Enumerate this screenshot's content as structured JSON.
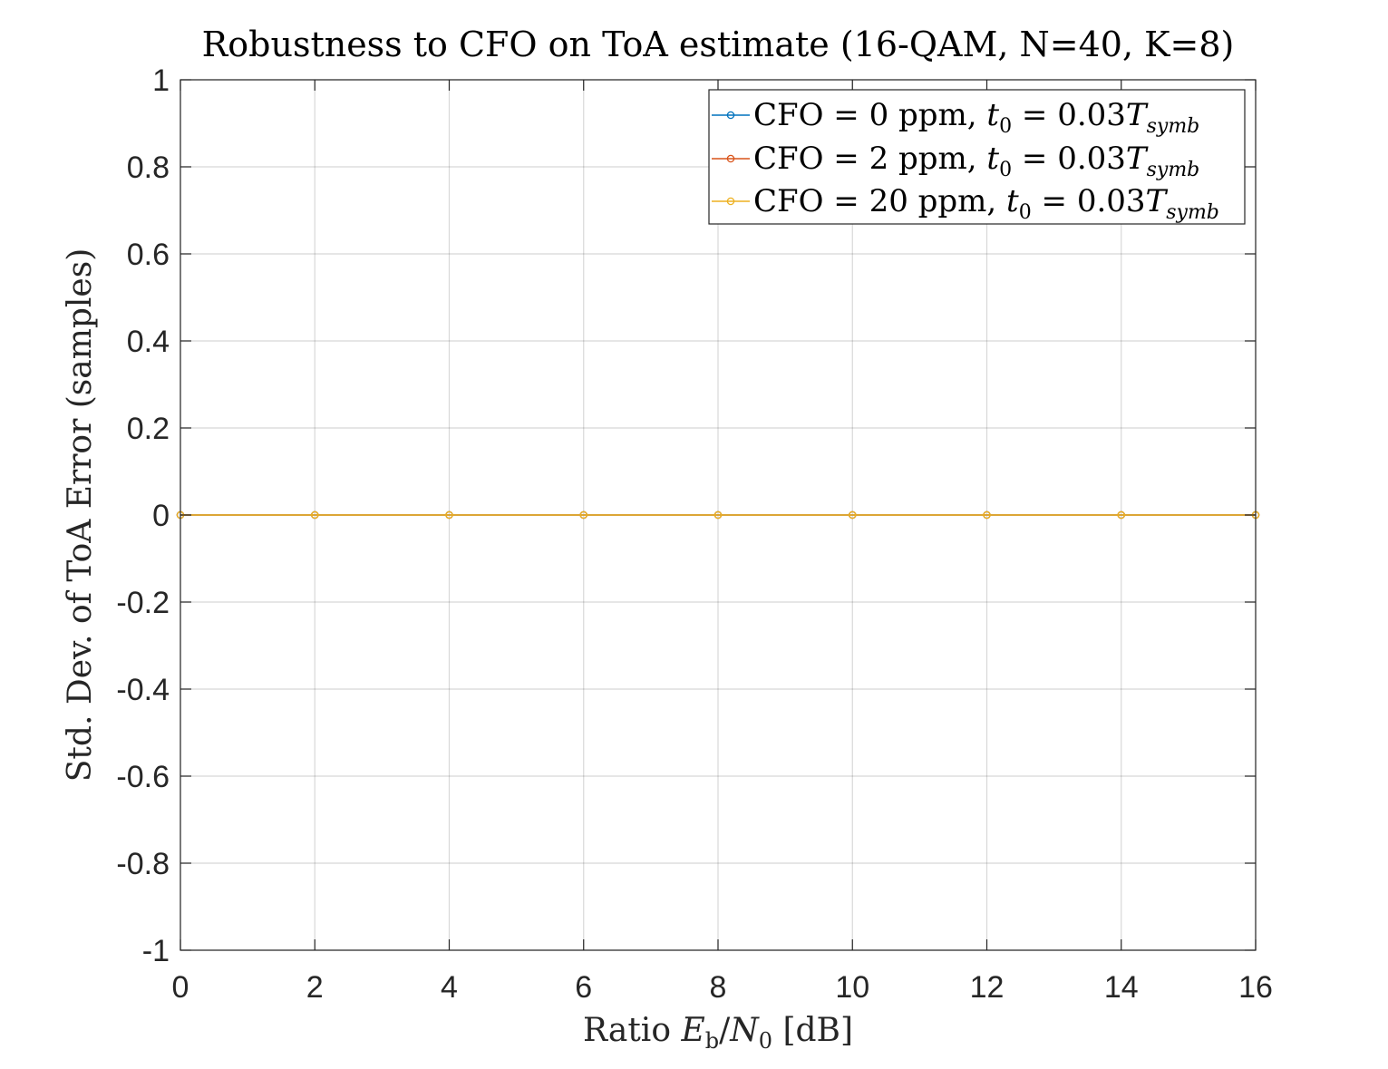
{
  "chart_data": {
    "type": "line",
    "title": "Robustness to CFO on ToA estimate (16-QAM, N=40, K=8)",
    "xlabel": "Ratio E_b/N_0 [dB]",
    "xlabel_parts": {
      "prefix": "Ratio ",
      "var1": "E",
      "sub1": "b",
      "slash": "/",
      "var2": "N",
      "sub2": "0",
      "suffix": " [dB]"
    },
    "ylabel": "Std. Dev. of ToA Error (samples)",
    "xlim": [
      0,
      16
    ],
    "ylim": [
      -1,
      1
    ],
    "xticks": [
      0,
      2,
      4,
      6,
      8,
      10,
      12,
      14,
      16
    ],
    "yticks": [
      -1,
      -0.8,
      -0.6,
      -0.4,
      -0.2,
      0,
      0.2,
      0.4,
      0.6,
      0.8,
      1
    ],
    "xtick_labels": [
      "0",
      "2",
      "4",
      "6",
      "8",
      "10",
      "12",
      "14",
      "16"
    ],
    "ytick_labels": [
      "-1",
      "-0.8",
      "-0.6",
      "-0.4",
      "-0.2",
      "0",
      "0.2",
      "0.4",
      "0.6",
      "0.8",
      "1"
    ],
    "grid": true,
    "legend_position": "top-right",
    "x": [
      0,
      2,
      4,
      6,
      8,
      10,
      12,
      14,
      16
    ],
    "series": [
      {
        "name": "CFO = 0 ppm, t_0 = 0.03T_symb",
        "label_parts": {
          "prefix": "CFO = 0 ppm, ",
          "tvar": "t",
          "tsub": "0",
          "eq": " = 0.03",
          "Tvar": "T",
          "Tsub": "symb"
        },
        "color": "#0072BD",
        "marker": "circle",
        "values": [
          0,
          0,
          0,
          0,
          0,
          0,
          0,
          0,
          0
        ]
      },
      {
        "name": "CFO = 2 ppm, t_0 = 0.03T_symb",
        "label_parts": {
          "prefix": "CFO = 2 ppm, ",
          "tvar": "t",
          "tsub": "0",
          "eq": " = 0.03",
          "Tvar": "T",
          "Tsub": "symb"
        },
        "color": "#D95319",
        "marker": "circle",
        "values": [
          0,
          0,
          0,
          0,
          0,
          0,
          0,
          0,
          0
        ]
      },
      {
        "name": "CFO = 20 ppm, t_0 = 0.03T_symb",
        "label_parts": {
          "prefix": "CFO = 20 ppm, ",
          "tvar": "t",
          "tsub": "0",
          "eq": " = 0.03",
          "Tvar": "T",
          "Tsub": "symb"
        },
        "color": "#EDB120",
        "marker": "circle",
        "values": [
          0,
          0,
          0,
          0,
          0,
          0,
          0,
          0,
          0
        ]
      }
    ]
  }
}
